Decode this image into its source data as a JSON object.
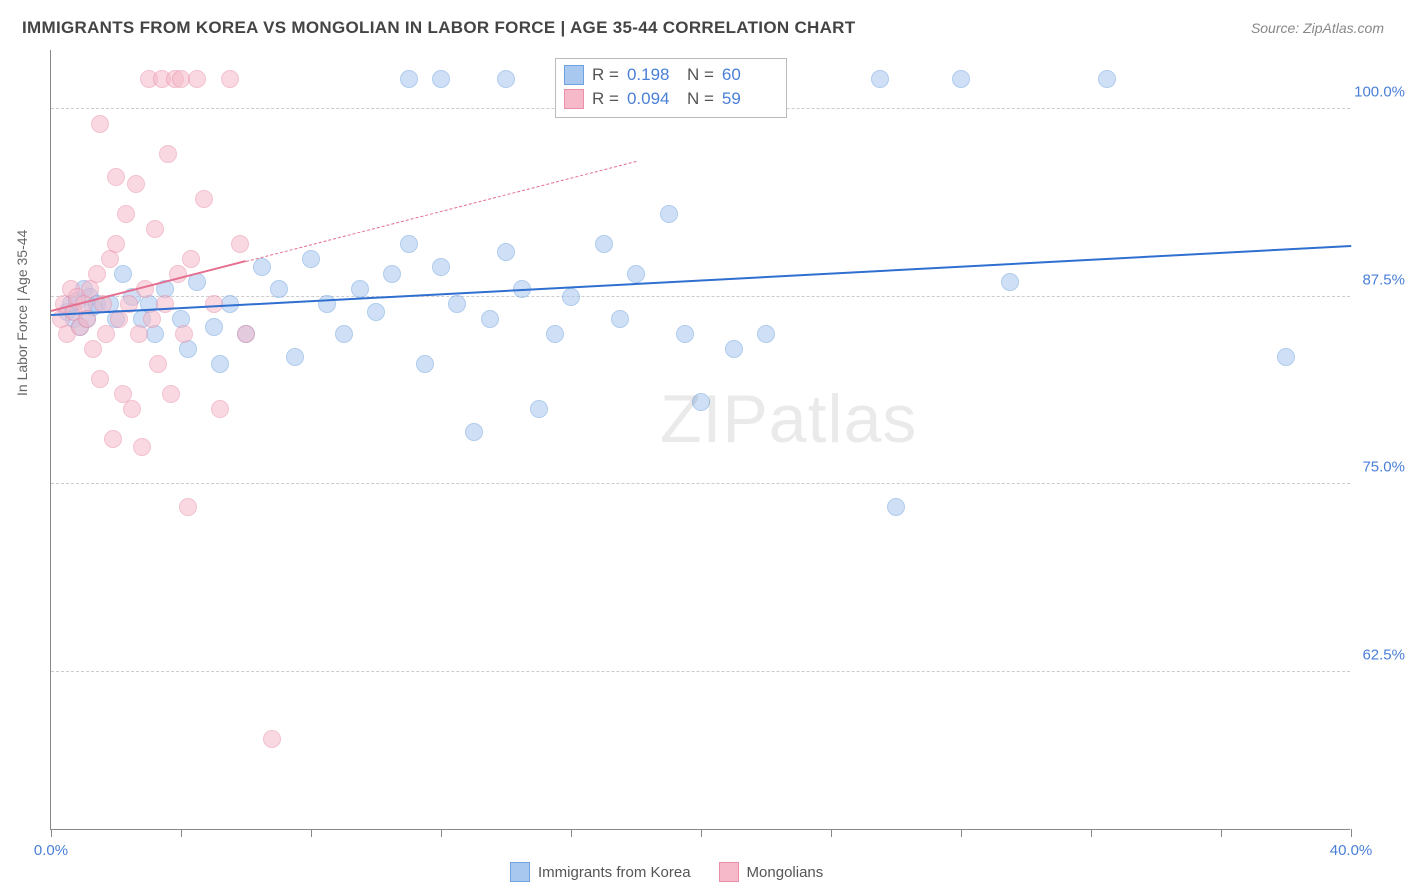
{
  "title": "IMMIGRANTS FROM KOREA VS MONGOLIAN IN LABOR FORCE | AGE 35-44 CORRELATION CHART",
  "source": "Source: ZipAtlas.com",
  "y_axis_label": "In Labor Force | Age 35-44",
  "watermark": "ZIPatlas",
  "chart": {
    "type": "scatter",
    "background_color": "#ffffff",
    "grid_color": "#cccccc",
    "axis_color": "#888888",
    "xlim": [
      0,
      40
    ],
    "ylim": [
      52,
      104
    ],
    "x_ticks": [
      0,
      4,
      8,
      12,
      16,
      20,
      24,
      28,
      32,
      36,
      40
    ],
    "x_tick_labels_shown": {
      "0": "0.0%",
      "40": "40.0%"
    },
    "y_ticks": [
      62.5,
      75.0,
      87.5,
      100.0
    ],
    "y_tick_labels": [
      "62.5%",
      "75.0%",
      "87.5%",
      "100.0%"
    ],
    "tick_label_color": "#4a7fd8",
    "tick_label_fontsize": 15,
    "title_fontsize": 17,
    "title_color": "#444444",
    "marker_radius": 9,
    "marker_opacity": 0.55,
    "series": [
      {
        "name": "Immigrants from Korea",
        "color_fill": "#a9c8ef",
        "color_stroke": "#6fa3e0",
        "R": 0.198,
        "N": 60,
        "trend": {
          "x1": 0,
          "y1": 86.2,
          "x2": 40,
          "y2": 90.8,
          "stroke": "#2f6fd0",
          "width": 2,
          "solid_until_x": 40
        },
        "points": [
          [
            0.5,
            86.5
          ],
          [
            0.6,
            87.0
          ],
          [
            0.7,
            86.0
          ],
          [
            0.8,
            87.2
          ],
          [
            0.9,
            85.5
          ],
          [
            1.0,
            88.0
          ],
          [
            1.1,
            86.0
          ],
          [
            1.2,
            87.5
          ],
          [
            1.3,
            86.8
          ],
          [
            1.4,
            87.0
          ],
          [
            1.8,
            87.0
          ],
          [
            2.0,
            86.0
          ],
          [
            2.2,
            89.0
          ],
          [
            2.5,
            87.5
          ],
          [
            2.8,
            86.0
          ],
          [
            3.0,
            87.0
          ],
          [
            3.2,
            85.0
          ],
          [
            3.5,
            88.0
          ],
          [
            4.0,
            86.0
          ],
          [
            4.2,
            84.0
          ],
          [
            4.5,
            88.5
          ],
          [
            5.0,
            85.5
          ],
          [
            5.2,
            83.0
          ],
          [
            5.5,
            87.0
          ],
          [
            6.0,
            85.0
          ],
          [
            6.5,
            89.5
          ],
          [
            7.0,
            88.0
          ],
          [
            7.5,
            83.5
          ],
          [
            8.0,
            90.0
          ],
          [
            8.5,
            87.0
          ],
          [
            9.0,
            85.0
          ],
          [
            9.5,
            88.0
          ],
          [
            10.0,
            86.5
          ],
          [
            10.5,
            89.0
          ],
          [
            11.0,
            91.0
          ],
          [
            11.5,
            83.0
          ],
          [
            12.0,
            89.5
          ],
          [
            12.5,
            87.0
          ],
          [
            13.0,
            78.5
          ],
          [
            13.5,
            86.0
          ],
          [
            14.0,
            90.5
          ],
          [
            14.5,
            88.0
          ],
          [
            15.0,
            80.0
          ],
          [
            15.5,
            85.0
          ],
          [
            16.0,
            87.5
          ],
          [
            17.0,
            91.0
          ],
          [
            17.5,
            86.0
          ],
          [
            18.0,
            89.0
          ],
          [
            19.0,
            93.0
          ],
          [
            19.5,
            85.0
          ],
          [
            20.0,
            80.5
          ],
          [
            21.0,
            84.0
          ],
          [
            22.0,
            85.0
          ],
          [
            25.5,
            102.0
          ],
          [
            26.0,
            73.5
          ],
          [
            28.0,
            102.0
          ],
          [
            29.5,
            88.5
          ],
          [
            32.5,
            102.0
          ],
          [
            38.0,
            83.5
          ],
          [
            14.0,
            102.0
          ],
          [
            12.0,
            102.0
          ],
          [
            11.0,
            102.0
          ]
        ]
      },
      {
        "name": "Mongolians",
        "color_fill": "#f5b9c9",
        "color_stroke": "#ea8fa8",
        "R": 0.094,
        "N": 59,
        "trend": {
          "x1": 0,
          "y1": 86.5,
          "x2": 18,
          "y2": 96.5,
          "stroke": "#e56f8f",
          "width": 2,
          "solid_until_x": 6
        },
        "points": [
          [
            0.3,
            86.0
          ],
          [
            0.4,
            87.0
          ],
          [
            0.5,
            85.0
          ],
          [
            0.6,
            88.0
          ],
          [
            0.7,
            86.5
          ],
          [
            0.8,
            87.5
          ],
          [
            0.9,
            85.5
          ],
          [
            1.0,
            87.0
          ],
          [
            1.1,
            86.0
          ],
          [
            1.2,
            88.0
          ],
          [
            1.3,
            84.0
          ],
          [
            1.4,
            89.0
          ],
          [
            1.5,
            82.0
          ],
          [
            1.6,
            87.0
          ],
          [
            1.7,
            85.0
          ],
          [
            1.8,
            90.0
          ],
          [
            1.9,
            78.0
          ],
          [
            2.0,
            91.0
          ],
          [
            2.1,
            86.0
          ],
          [
            2.2,
            81.0
          ],
          [
            2.3,
            93.0
          ],
          [
            2.4,
            87.0
          ],
          [
            2.5,
            80.0
          ],
          [
            2.6,
            95.0
          ],
          [
            2.7,
            85.0
          ],
          [
            2.8,
            77.5
          ],
          [
            2.9,
            88.0
          ],
          [
            3.0,
            102.0
          ],
          [
            3.1,
            86.0
          ],
          [
            3.2,
            92.0
          ],
          [
            3.3,
            83.0
          ],
          [
            3.4,
            102.0
          ],
          [
            3.5,
            87.0
          ],
          [
            3.6,
            97.0
          ],
          [
            3.7,
            81.0
          ],
          [
            3.8,
            102.0
          ],
          [
            3.9,
            89.0
          ],
          [
            4.0,
            102.0
          ],
          [
            4.1,
            85.0
          ],
          [
            4.2,
            73.5
          ],
          [
            4.3,
            90.0
          ],
          [
            4.5,
            102.0
          ],
          [
            4.7,
            94.0
          ],
          [
            5.0,
            87.0
          ],
          [
            5.2,
            80.0
          ],
          [
            5.5,
            102.0
          ],
          [
            5.8,
            91.0
          ],
          [
            6.0,
            85.0
          ],
          [
            1.5,
            99.0
          ],
          [
            2.0,
            95.5
          ],
          [
            6.8,
            58.0
          ]
        ]
      }
    ]
  },
  "legend_bottom": [
    {
      "label": "Immigrants from Korea",
      "fill": "#a9c8ef",
      "stroke": "#6fa3e0"
    },
    {
      "label": "Mongolians",
      "fill": "#f5b9c9",
      "stroke": "#ea8fa8"
    }
  ],
  "stats_box": {
    "rows": [
      {
        "fill": "#a9c8ef",
        "stroke": "#6fa3e0",
        "R_label": "R  =",
        "R": "0.198",
        "N_label": "N  =",
        "N": "60"
      },
      {
        "fill": "#f5b9c9",
        "stroke": "#ea8fa8",
        "R_label": "R  =",
        "R": "0.094",
        "N_label": "N  =",
        "N": "59"
      }
    ]
  }
}
